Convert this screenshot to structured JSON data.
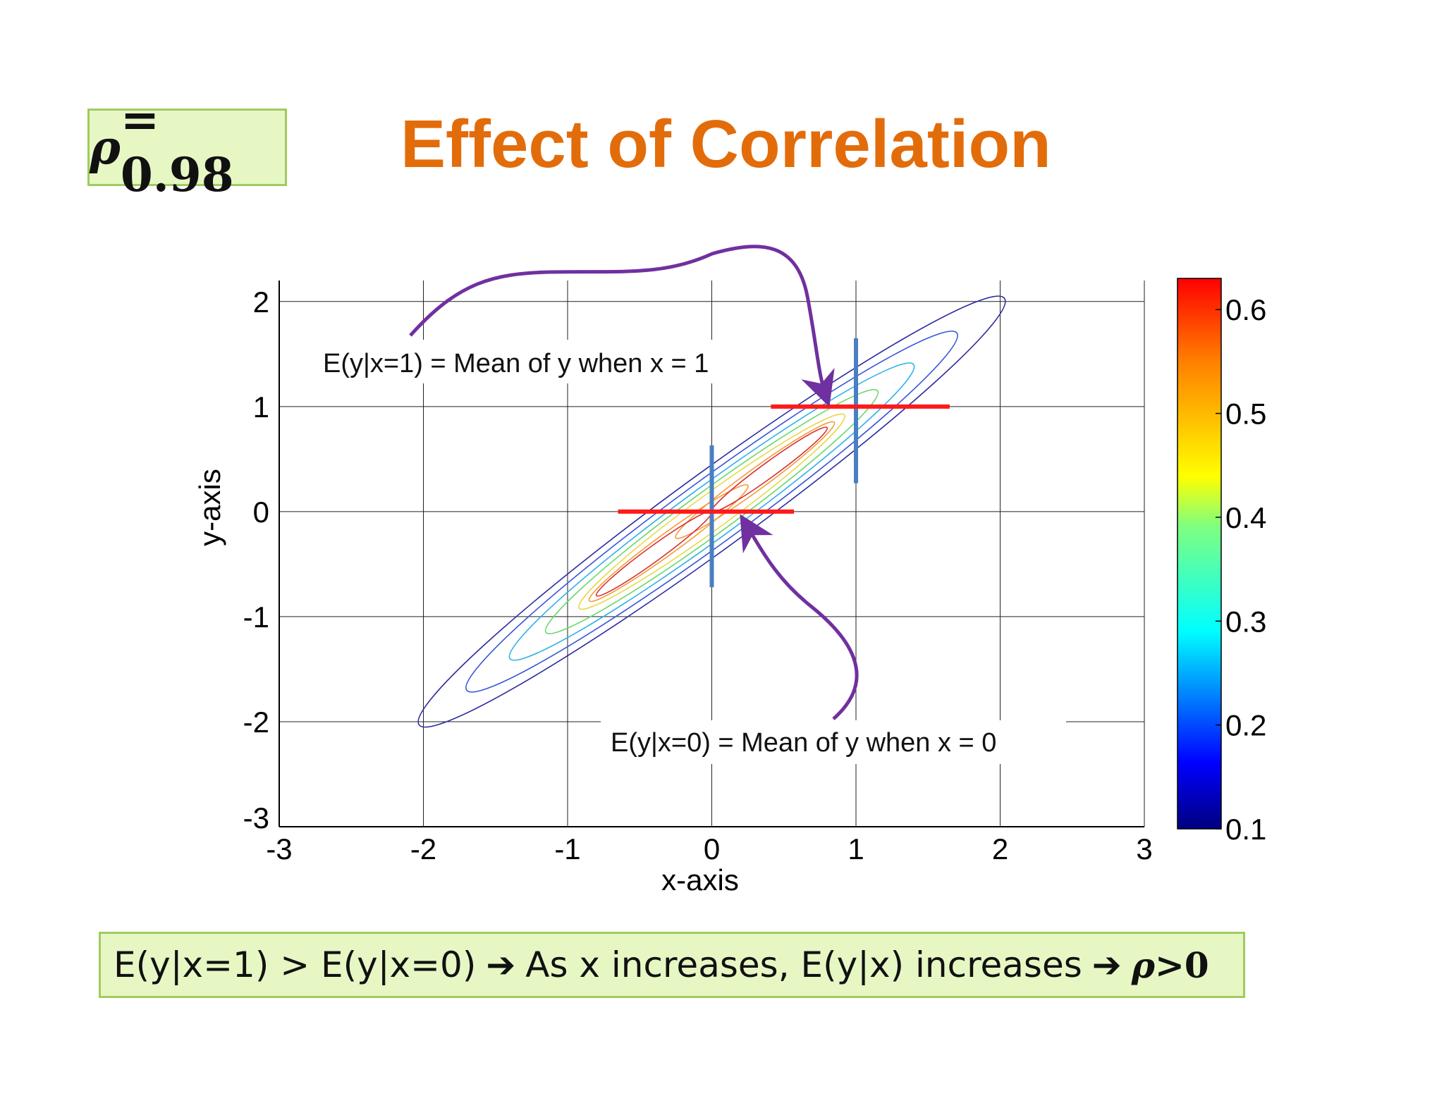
{
  "slide": {
    "title": "Effect of Correlation",
    "rho_box": {
      "symbol": "ρ",
      "text": " = 0.98"
    },
    "bottom_box": {
      "part1": "E(y|x=1)  > E(y|x=0)",
      "arrow1": "➔",
      "part2": "As x increases, E(y|x) increases",
      "arrow2": "➔",
      "rho_symbol": "ρ",
      "rho_tail": ">0"
    }
  },
  "chart_data": {
    "type": "contour",
    "xlabel": "x-axis",
    "ylabel": "y-axis",
    "xlim": [
      -3,
      3
    ],
    "ylim": [
      -3,
      2.2
    ],
    "xticks": [
      -3,
      -2,
      -1,
      0,
      1,
      2,
      3
    ],
    "yticks": [
      -3,
      -2,
      -1,
      0,
      1,
      2
    ],
    "grid": true,
    "correlation": 0.98,
    "colorbar": {
      "min": 0.1,
      "max": 0.63,
      "ticks": [
        0.1,
        0.2,
        0.3,
        0.4,
        0.5,
        0.6
      ],
      "colormap": "jet"
    },
    "contours": [
      {
        "level": 0.1,
        "color": "#2a2aa0",
        "centers": [
          [
            0,
            0
          ]
        ],
        "extent": 2.03
      },
      {
        "level": 0.15,
        "color": "#3a55d8",
        "centers": [
          [
            0,
            0
          ]
        ],
        "extent": 1.7
      },
      {
        "level": 0.25,
        "color": "#2fb0e8",
        "centers": [
          [
            0,
            0
          ]
        ],
        "extent": 1.4
      },
      {
        "level": 0.35,
        "color": "#6ad76a",
        "centers": [
          [
            0,
            0
          ]
        ],
        "extent": 1.15
      },
      {
        "level": 0.45,
        "color": "#e8d84a",
        "centers": [
          [
            0,
            0
          ]
        ],
        "extent": 0.92
      },
      {
        "level": 0.52,
        "color": "#f39a3a",
        "centers": [
          [
            -0.3,
            -0.3
          ],
          [
            0.3,
            0.3
          ]
        ],
        "extent": 0.55
      },
      {
        "level": 0.58,
        "color": "#d93030",
        "centers": [
          [
            -0.4,
            -0.4
          ],
          [
            0.4,
            0.4
          ]
        ],
        "extent": 0.4
      }
    ],
    "conditional_lines": [
      {
        "x": 0,
        "horizontal": {
          "y": 0,
          "from": -0.65,
          "to": 0.57
        },
        "vertical": {
          "from": -0.72,
          "to": 0.63
        }
      },
      {
        "x": 1,
        "horizontal": {
          "y": 1,
          "from": 0.41,
          "to": 1.65
        },
        "vertical": {
          "from": 0.27,
          "to": 1.65
        }
      }
    ],
    "annotations": [
      {
        "text": "E(y|x=1) = Mean of y when x = 1",
        "target": [
          0.8,
          1.02
        ]
      },
      {
        "text": "E(y|x=0) = Mean of y when x = 0",
        "target": [
          0.22,
          0
        ]
      }
    ]
  }
}
